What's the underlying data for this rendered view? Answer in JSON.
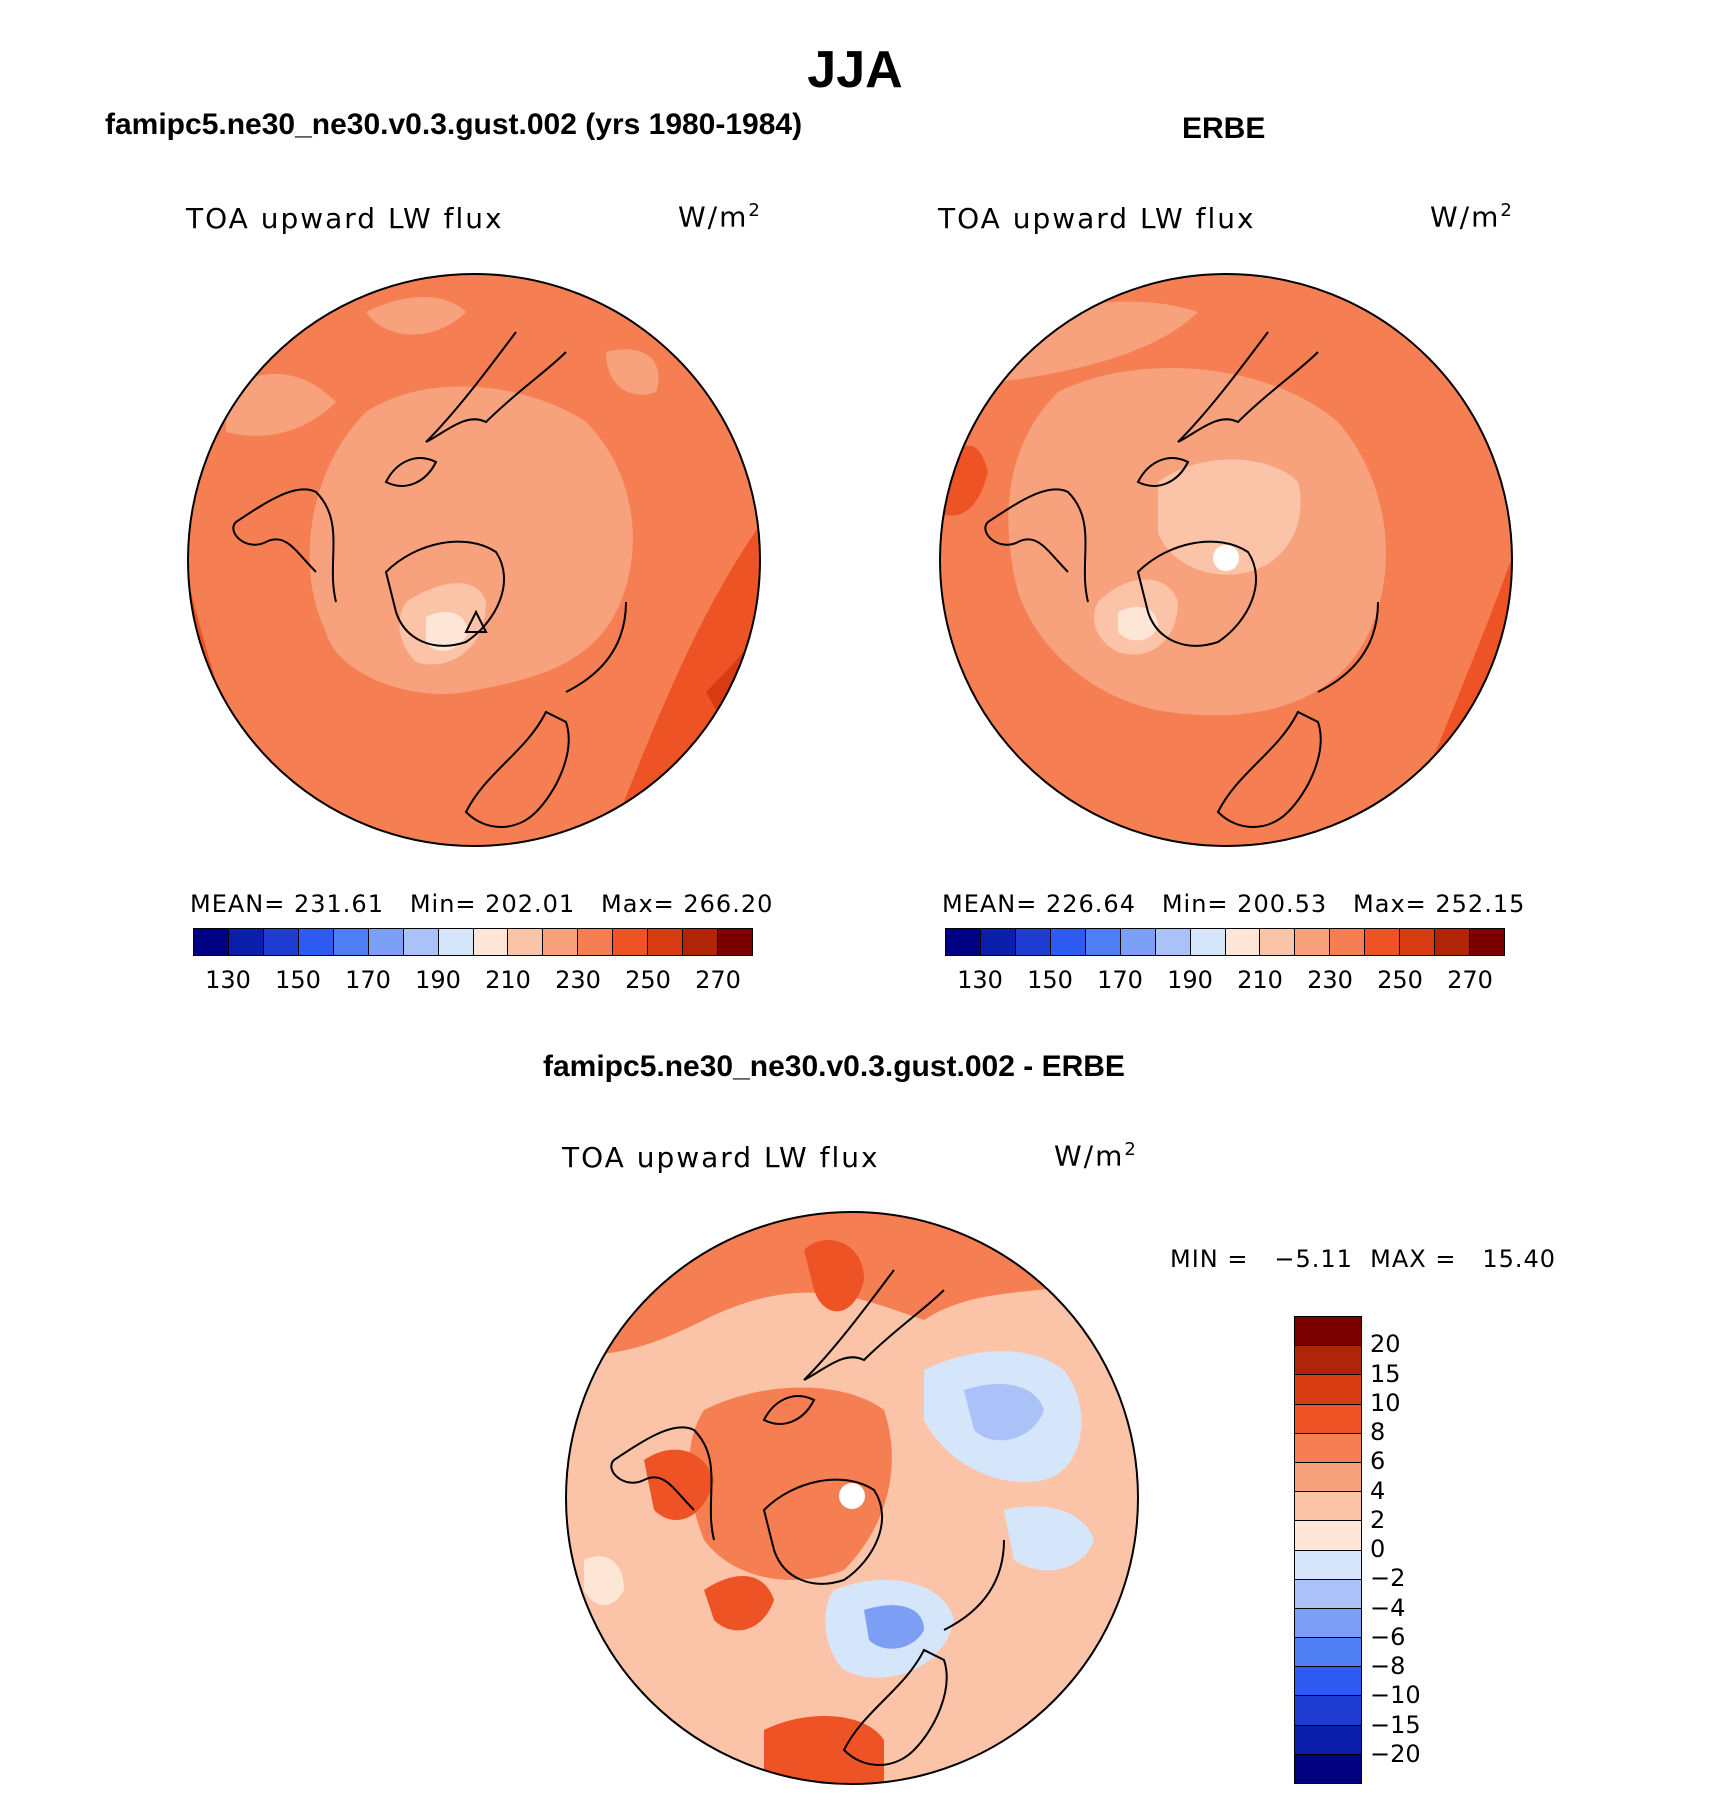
{
  "figure": {
    "season": "JJA",
    "variable": "TOA upward LW flux",
    "units": "W/m",
    "units_exponent": "2"
  },
  "panels": {
    "model": {
      "title": "famipc5.ne30_ne30.v0.3.gust.002 (yrs 1980-1984)",
      "stats": "MEAN= 231.61   Min= 202.01   Max= 266.20"
    },
    "obs": {
      "title": "ERBE",
      "stats": "MEAN= 226.64   Min= 200.53   Max= 252.15"
    },
    "diff": {
      "title": "famipc5.ne30_ne30.v0.3.gust.002 - ERBE",
      "stats": "MIN =   −5.11  MAX =   15.40"
    }
  },
  "colorbar_abs": {
    "tick_labels": [
      "130",
      "150",
      "170",
      "190",
      "210",
      "230",
      "250",
      "270"
    ],
    "colors": [
      "#000080",
      "#0a1eaa",
      "#1e3cd2",
      "#2d5af0",
      "#4f7ff2",
      "#7c9ff5",
      "#aac2f7",
      "#d6e6fa",
      "#fde6d6",
      "#fbc4a8",
      "#f8a27d",
      "#f57e52",
      "#ee5326",
      "#d63b12",
      "#b02408",
      "#7a0000"
    ]
  },
  "colorbar_diff": {
    "tick_labels": [
      "20",
      "15",
      "10",
      "8",
      "6",
      "4",
      "2",
      "0",
      "−2",
      "−4",
      "−6",
      "−8",
      "−10",
      "−15",
      "−20"
    ],
    "colors": [
      "#7a0000",
      "#b02408",
      "#d63b12",
      "#ee5326",
      "#f57e52",
      "#f8a27d",
      "#fbc4a8",
      "#fde6d6",
      "#d6e6fa",
      "#aac2f7",
      "#7c9ff5",
      "#4f7ff2",
      "#2d5af0",
      "#1e3cd2",
      "#0a1eaa",
      "#000080"
    ]
  }
}
